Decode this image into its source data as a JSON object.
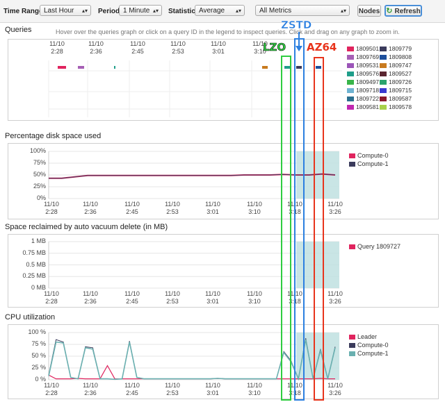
{
  "toolbar": {
    "time_range_label": "Time Range:",
    "time_range_value": "Last Hour",
    "period_label": "Period:",
    "period_value": "1 Minute",
    "statistic_label": "Statistic:",
    "statistic_value": "Average",
    "metrics_value": "All Metrics",
    "nodes_label": "Nodes",
    "refresh_label": "Refresh"
  },
  "queries": {
    "title": "Queries",
    "hint": "Hover over the queries graph or click on a query ID in the legend to inspect queries. Click and drag on any graph to zoom in.",
    "time_labels": [
      {
        "date": "11/10",
        "time": "2:28"
      },
      {
        "date": "11/10",
        "time": "2:36"
      },
      {
        "date": "11/10",
        "time": "2:45"
      },
      {
        "date": "11/10",
        "time": "2:53"
      },
      {
        "date": "11/10",
        "time": "3:01"
      },
      {
        "date": "11/10",
        "time": "3:10"
      }
    ],
    "legend": [
      {
        "id": "1809501",
        "color": "#e0245e"
      },
      {
        "id": "1809779",
        "color": "#3b3b5c"
      },
      {
        "id": "1809769",
        "color": "#a65fb5"
      },
      {
        "id": "1809808",
        "color": "#1e4f9c"
      },
      {
        "id": "1809531",
        "color": "#9b55b8"
      },
      {
        "id": "1809747",
        "color": "#c87a1f"
      },
      {
        "id": "1809576",
        "color": "#1f9e8a"
      },
      {
        "id": "1809527",
        "color": "#5a2630"
      },
      {
        "id": "1809497",
        "color": "#39b54a"
      },
      {
        "id": "1809726",
        "color": "#2aa36d"
      },
      {
        "id": "1809718",
        "color": "#6fb3d2"
      },
      {
        "id": "1809715",
        "color": "#3a3ad0"
      },
      {
        "id": "1809722",
        "color": "#2b6f8f"
      },
      {
        "id": "1809587",
        "color": "#8b1a2b"
      },
      {
        "id": "1809581",
        "color": "#c028b0"
      },
      {
        "id": "1809578",
        "color": "#a8d04a"
      }
    ]
  },
  "disk": {
    "title": "Percentage disk space used",
    "y_ticks": [
      "100%",
      "75%",
      "50%",
      "25%",
      "0%"
    ],
    "legend": [
      {
        "name": "Compute-0",
        "color": "#e0245e"
      },
      {
        "name": "Compute-1",
        "color": "#3b3b5c"
      }
    ]
  },
  "vacuum": {
    "title": "Space reclaimed by auto vacuum delete (in MB)",
    "y_ticks": [
      "1 MB",
      "0.75 MB",
      "0.5 MB",
      "0.25 MB",
      "0 MB"
    ],
    "legend": [
      {
        "name": "Query 1809727",
        "color": "#e0245e"
      }
    ]
  },
  "cpu": {
    "title": "CPU utilization",
    "y_ticks": [
      "100 %",
      "75 %",
      "50 %",
      "25 %",
      "0 %"
    ],
    "legend": [
      {
        "name": "Leader",
        "color": "#e0245e"
      },
      {
        "name": "Compute-0",
        "color": "#3b3b5c"
      },
      {
        "name": "Compute-1",
        "color": "#6ab0b0"
      }
    ]
  },
  "chart_time_labels": [
    {
      "date": "11/10",
      "time": "2:28"
    },
    {
      "date": "11/10",
      "time": "2:36"
    },
    {
      "date": "11/10",
      "time": "2:45"
    },
    {
      "date": "11/10",
      "time": "2:53"
    },
    {
      "date": "11/10",
      "time": "3:01"
    },
    {
      "date": "11/10",
      "time": "3:10"
    },
    {
      "date": "11/10",
      "time": "3:18"
    },
    {
      "date": "11/10",
      "time": "3:26"
    }
  ],
  "annotations": {
    "lzo": "LZO",
    "zstd": "ZSTD",
    "az64": "AZ64",
    "lzo_color": "#2ecc40",
    "zstd_color": "#2b7fe0",
    "az64_color": "#e8341c"
  },
  "chart_data": [
    {
      "type": "line",
      "title": "Percentage disk space used",
      "series": [
        {
          "name": "Compute-0",
          "values": [
            43,
            43,
            46,
            49,
            49,
            49,
            49,
            49,
            49,
            49,
            49,
            49,
            49,
            49,
            49,
            50,
            50,
            50,
            51,
            50,
            50,
            52,
            50
          ]
        },
        {
          "name": "Compute-1",
          "values": [
            43,
            43,
            46,
            49,
            49,
            49,
            49,
            49,
            49,
            49,
            49,
            49,
            49,
            49,
            49,
            50,
            50,
            50,
            51,
            50,
            50,
            52,
            50
          ]
        }
      ],
      "ylim": [
        0,
        100
      ]
    },
    {
      "type": "line",
      "title": "Space reclaimed by auto vacuum delete (in MB)",
      "series": [
        {
          "name": "Query 1809727",
          "values": []
        }
      ],
      "ylim": [
        0,
        1
      ]
    },
    {
      "type": "line",
      "title": "CPU utilization",
      "series": [
        {
          "name": "Leader",
          "values": [
            10,
            2,
            2,
            2,
            3,
            2,
            2,
            2,
            30,
            2,
            2,
            2,
            2,
            2,
            2,
            2,
            2,
            2,
            2,
            2,
            2,
            2,
            2,
            3,
            2,
            2,
            2,
            2,
            2,
            2,
            2,
            2,
            2,
            2,
            2,
            2,
            2,
            3,
            2,
            2
          ]
        },
        {
          "name": "Compute-0",
          "values": [
            10,
            85,
            80,
            5,
            2,
            70,
            68,
            2,
            2,
            1,
            2,
            82,
            5,
            2,
            2,
            2,
            2,
            2,
            2,
            2,
            2,
            2,
            2,
            3,
            2,
            2,
            2,
            2,
            2,
            2,
            2,
            2,
            60,
            40,
            2,
            88,
            2,
            65,
            2,
            70
          ]
        },
        {
          "name": "Compute-1",
          "values": [
            8,
            80,
            78,
            5,
            2,
            68,
            65,
            2,
            2,
            1,
            2,
            80,
            5,
            2,
            2,
            2,
            2,
            2,
            2,
            2,
            2,
            2,
            2,
            3,
            2,
            2,
            2,
            2,
            2,
            2,
            2,
            2,
            58,
            38,
            2,
            85,
            2,
            62,
            2,
            68
          ]
        }
      ],
      "ylim": [
        0,
        100
      ]
    }
  ]
}
